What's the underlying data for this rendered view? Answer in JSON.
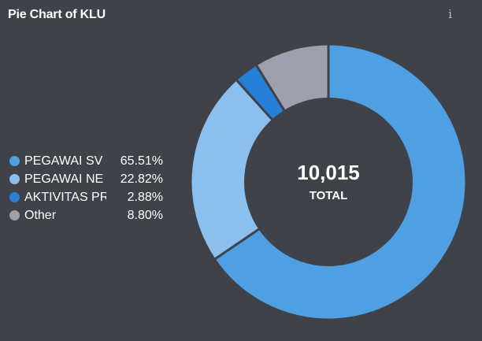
{
  "header": {
    "title": "Pie Chart of KLU",
    "info_icon": "info-icon"
  },
  "colors": {
    "background": "#3f4248",
    "hole": "#3f4248"
  },
  "chart_data": {
    "type": "pie",
    "donut": true,
    "title": "Pie Chart of KLU",
    "legend_position": "left",
    "center": {
      "value": "10,015",
      "label": "TOTAL"
    },
    "slices": [
      {
        "label": "PEGAWAI SV",
        "value": 65.51,
        "value_label": "65.51%",
        "color": "#4fa0e2"
      },
      {
        "label": "PEGAWAI NE",
        "value": 22.82,
        "value_label": "22.82%",
        "color": "#8bbfee"
      },
      {
        "label": "AKTIVITAS PR",
        "value": 2.88,
        "value_label": "2.88%",
        "color": "#2680d8"
      },
      {
        "label": "Other",
        "value": 8.8,
        "value_label": "8.80%",
        "color": "#9ea1ad"
      }
    ]
  }
}
